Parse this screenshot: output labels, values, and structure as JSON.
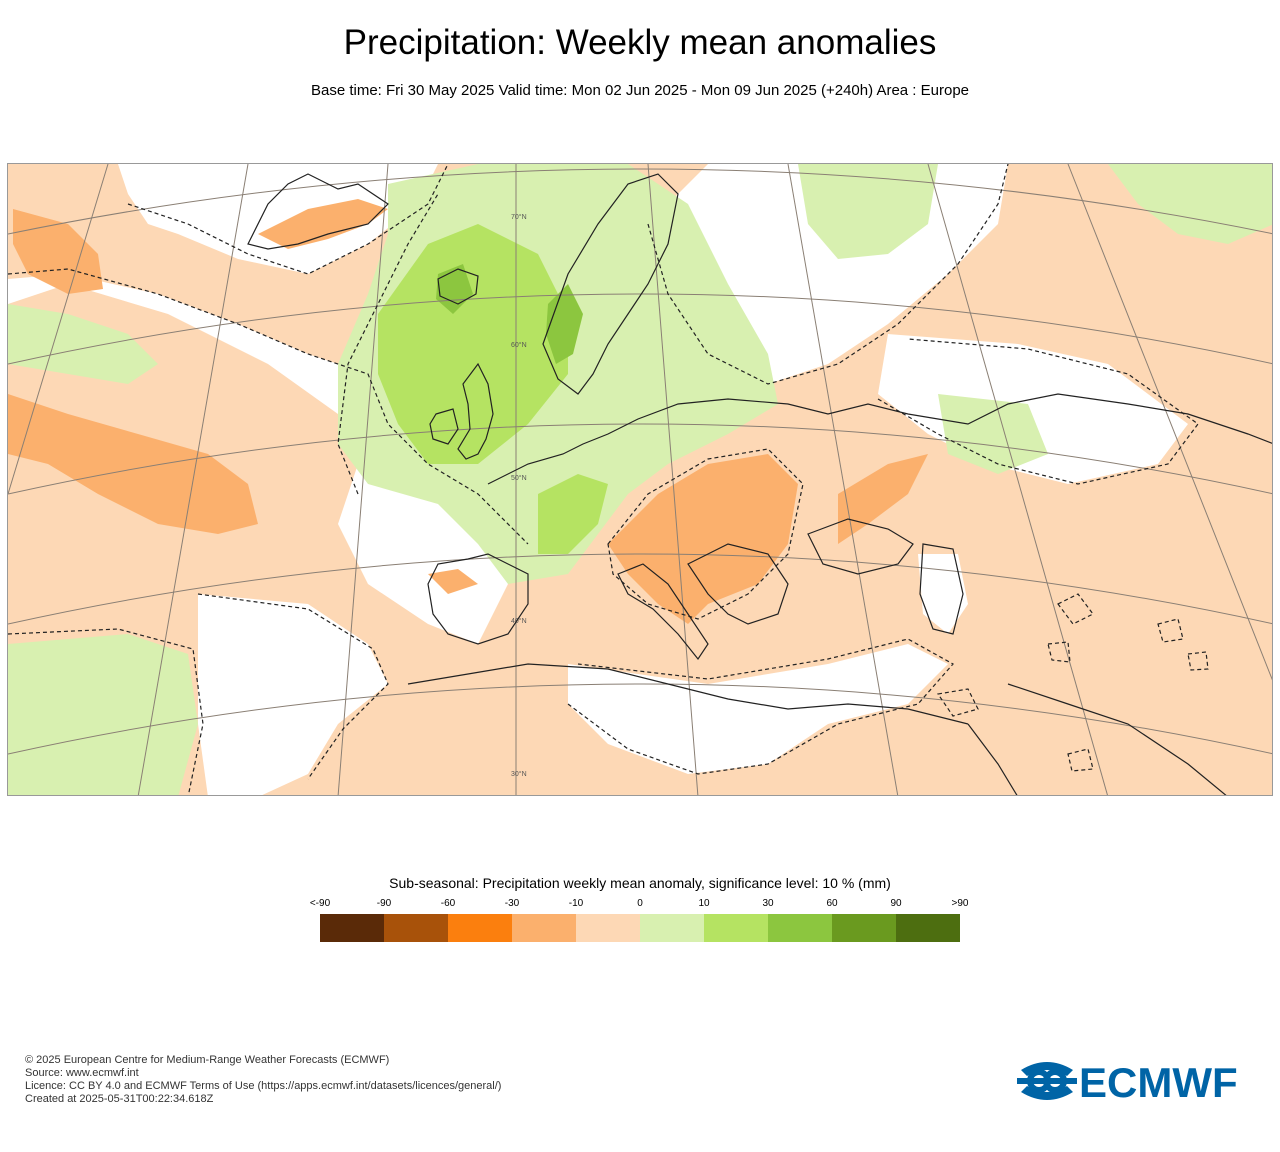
{
  "title": "Precipitation: Weekly mean anomalies",
  "subtitle": "Base time: Fri 30 May 2025 Valid time: Mon 02 Jun 2025 - Mon 09 Jun 2025 (+240h) Area : Europe",
  "map": {
    "lat_labels": [
      "70°N",
      "60°N",
      "50°N",
      "40°N",
      "30°N"
    ],
    "colors": {
      "ocean_neutral": "#ffffff",
      "dry_weak": "#fdd8b5",
      "dry_moderate": "#fbb06d",
      "wet_weak": "#d8f0b0",
      "wet_moderate": "#b5e362",
      "wet_strong": "#8cc63f",
      "coastline": "#222222",
      "graticule": "#8a7f74"
    }
  },
  "legend": {
    "title": "Sub-seasonal: Precipitation weekly mean anomaly, significance level: 10 % (mm)",
    "ticks": [
      "<-90",
      "-90",
      "-60",
      "-30",
      "-10",
      "0",
      "10",
      "30",
      "60",
      "90",
      ">90"
    ],
    "colors": [
      "#5a2a08",
      "#a8520a",
      "#fb7f0e",
      "#fbb06d",
      "#fdd8b5",
      "#d8f0b0",
      "#b5e362",
      "#8cc63f",
      "#6a9a1f",
      "#4d6e10"
    ]
  },
  "footer": {
    "line1": "© 2025 European Centre for Medium-Range Weather Forecasts (ECMWF)",
    "line2": "Source: www.ecmwf.int",
    "line3": "Licence: CC BY 4.0 and ECMWF Terms of Use (https://apps.ecmwf.int/datasets/licences/general/)",
    "line4": "Created at 2025-05-31T00:22:34.618Z"
  },
  "logo": {
    "text": "ECMWF",
    "color": "#0064a6"
  }
}
